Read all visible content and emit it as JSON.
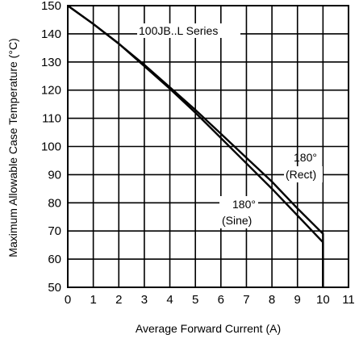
{
  "chart_data": {
    "type": "line",
    "title": "100JB..L Series",
    "xlabel": "Average Forward Current (A)",
    "ylabel": "Maximum Allowable Case Temperature (°C)",
    "xlim": [
      0,
      11
    ],
    "ylim": [
      50,
      150
    ],
    "xticks": [
      "0",
      "1",
      "2",
      "3",
      "4",
      "5",
      "6",
      "7",
      "8",
      "9",
      "10",
      "11"
    ],
    "yticks": [
      "50",
      "60",
      "70",
      "80",
      "90",
      "100",
      "110",
      "120",
      "130",
      "140",
      "150"
    ],
    "grid": true,
    "series": [
      {
        "name": "180° (Rect)",
        "x": [
          0,
          1,
          2,
          3,
          4,
          5,
          6,
          7,
          8,
          9,
          10,
          10
        ],
        "y": [
          150,
          143.5,
          136.5,
          129,
          121,
          113,
          104.5,
          96,
          87.5,
          78,
          69,
          50
        ]
      },
      {
        "name": "180° (Sine)",
        "x": [
          0,
          1,
          2,
          3,
          4,
          5,
          6,
          7,
          8,
          9,
          10,
          10
        ],
        "y": [
          150,
          143.5,
          136.5,
          128.5,
          120.5,
          112,
          103,
          94,
          85,
          75.5,
          66,
          50
        ]
      }
    ],
    "annotations": [
      {
        "line1": "180°",
        "line2": "(Rect)"
      },
      {
        "line1": "180°",
        "line2": "(Sine)"
      }
    ]
  }
}
